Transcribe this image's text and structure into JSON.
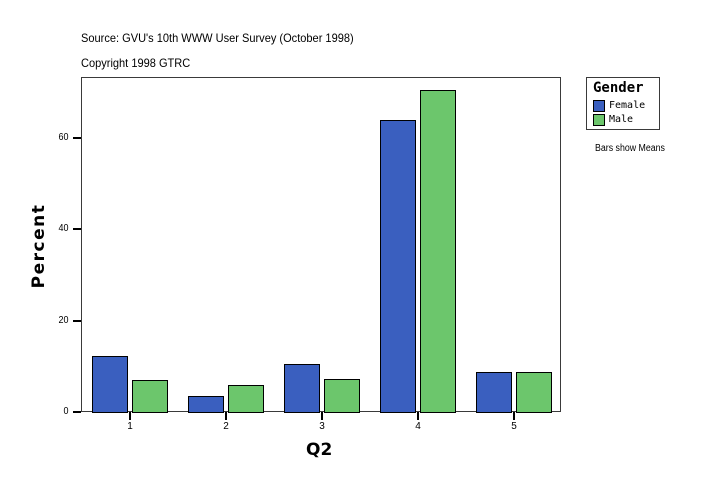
{
  "header": {
    "source": "Source: GVU's 10th WWW User Survey (October 1998)",
    "copyright": "Copyright 1998 GTRC"
  },
  "legend": {
    "title": "Gender",
    "items": [
      {
        "label": "Female",
        "color": "#3a5fbf"
      },
      {
        "label": "Male",
        "color": "#6cc66c"
      }
    ]
  },
  "note": "Bars show Means",
  "chart_data": {
    "type": "bar",
    "title": "",
    "subtitle": "Source: GVU's 10th WWW User Survey (October 1998) / Copyright 1998 GTRC",
    "xlabel": "Q2",
    "ylabel": "Percent",
    "categories": [
      "1",
      "2",
      "3",
      "4",
      "5"
    ],
    "series": [
      {
        "name": "Female",
        "color": "#3a5fbf",
        "values": [
          12.3,
          3.5,
          10.4,
          63.9,
          8.8
        ]
      },
      {
        "name": "Male",
        "color": "#6cc66c",
        "values": [
          7.0,
          5.9,
          7.2,
          70.5,
          8.8
        ]
      }
    ],
    "yticks": [
      0,
      20,
      40,
      60
    ],
    "ylim": [
      0,
      73.3
    ],
    "grid": false,
    "legend_position": "right",
    "annotations": [
      "Bars show Means"
    ]
  }
}
